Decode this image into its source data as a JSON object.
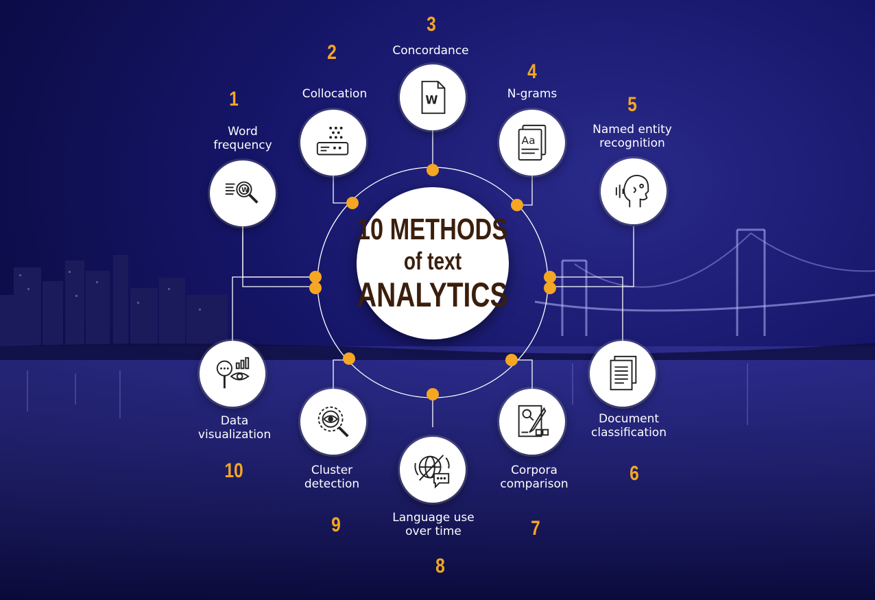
{
  "title": {
    "line1": "10 METHODS",
    "line2": "of text",
    "line3": "ANALYTICS"
  },
  "colors": {
    "accent": "#f5a623",
    "title_text": "#3b1f0c",
    "background": "#15156a",
    "node_fill": "#ffffff"
  },
  "methods": [
    {
      "number": "1",
      "label": "Word\nfrequency",
      "icon": "word-search-icon"
    },
    {
      "number": "2",
      "label": "Collocation",
      "icon": "collocation-icon"
    },
    {
      "number": "3",
      "label": "Concordance",
      "icon": "word-document-icon"
    },
    {
      "number": "4",
      "label": "N-grams",
      "icon": "letter-cards-icon"
    },
    {
      "number": "5",
      "label": "Named entity\nrecognition",
      "icon": "speaking-head-icon"
    },
    {
      "number": "6",
      "label": "Document\nclassification",
      "icon": "documents-icon"
    },
    {
      "number": "7",
      "label": "Corpora\ncomparison",
      "icon": "corpora-edit-icon"
    },
    {
      "number": "8",
      "label": "Language use\nover time",
      "icon": "globe-chat-icon"
    },
    {
      "number": "9",
      "label": "Cluster\ndetection",
      "icon": "cluster-eye-icon"
    },
    {
      "number": "10",
      "label": "Data\nvisualization",
      "icon": "data-visualization-icon"
    }
  ]
}
